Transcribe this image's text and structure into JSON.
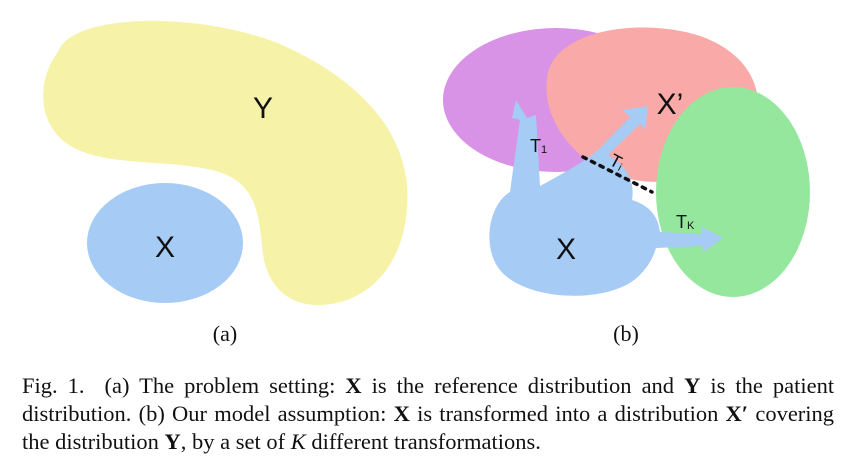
{
  "panel_a": {
    "label": "(a)",
    "region_y_label": "Y",
    "region_x_label": "X"
  },
  "panel_b": {
    "label": "(b)",
    "region_x_label": "X",
    "region_x_prime_label": "X’",
    "transforms": {
      "t1": {
        "base": "T",
        "sub": "1"
      },
      "ti": {
        "base": "T",
        "sub": "i"
      },
      "tk": {
        "base": "T",
        "sub": "K"
      }
    }
  },
  "caption": {
    "fig_label": "Fig. 1.",
    "panel_a_marker": "(a)",
    "part1": "The problem setting:",
    "X": "X",
    "part2": "is the reference distribution and",
    "Y": "Y",
    "part3": "is the patient distribution.",
    "panel_b_marker": "(b)",
    "part4": "Our model assumption:",
    "X2": "X",
    "part5": "is transformed into a distribution",
    "X_prime": "X′",
    "part6": "covering the distribution",
    "Y2": "Y",
    "part7": ", by a set of",
    "K": "K",
    "part8": "different transformations."
  },
  "colors": {
    "blob_yellow": "#f6f3a8",
    "blob_blue": "#a6cbf5",
    "blob_purple": "#d892e6",
    "blob_pink": "#f9aaa8",
    "blob_green": "#95e79e",
    "arrow_blue": "#a6cbf5"
  }
}
